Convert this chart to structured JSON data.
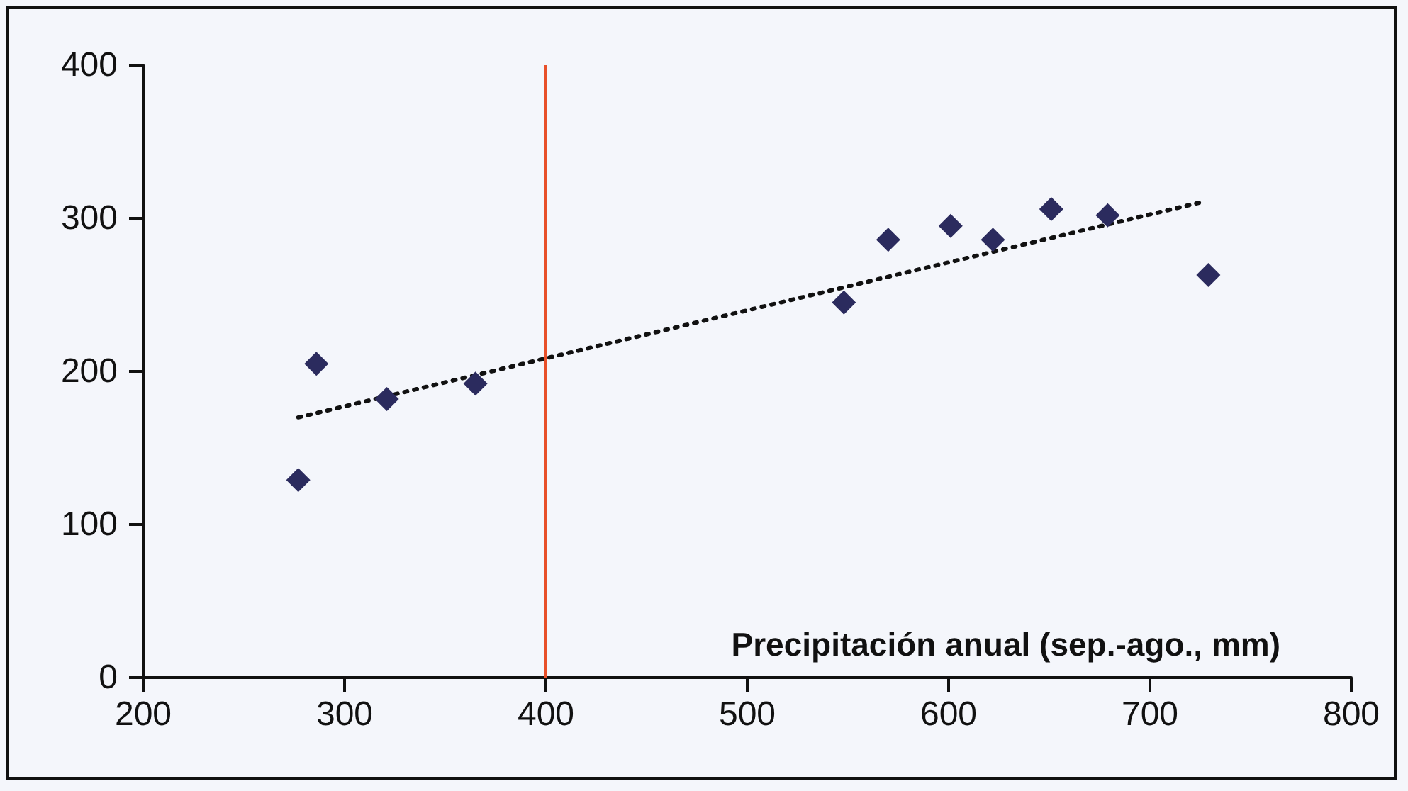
{
  "chart_data": {
    "type": "scatter",
    "xlabel": "Precipitación anual (sep.-ago., mm)",
    "xlim": [
      200,
      800
    ],
    "xticks": [
      200,
      300,
      400,
      500,
      600,
      700,
      800
    ],
    "ylim": [
      0,
      400
    ],
    "yticks": [
      0,
      100,
      200,
      300,
      400
    ],
    "marker": "diamond",
    "grid": false,
    "series": [
      {
        "color": "#2b2b5e",
        "x": [
          277,
          286,
          321,
          365,
          548,
          570,
          601,
          622,
          651,
          679,
          729
        ],
        "values": [
          129,
          205,
          182,
          192,
          245,
          286,
          295,
          286,
          306,
          302,
          263
        ]
      },
      {
        "type": "line",
        "color": "#111111",
        "line_style": "dotted",
        "marker": "none",
        "x": [
          277,
          727
        ],
        "values": [
          170,
          311
        ]
      }
    ],
    "ref_lines": [
      {
        "axis": "x",
        "value": 400,
        "color": "#e8502a"
      }
    ]
  }
}
